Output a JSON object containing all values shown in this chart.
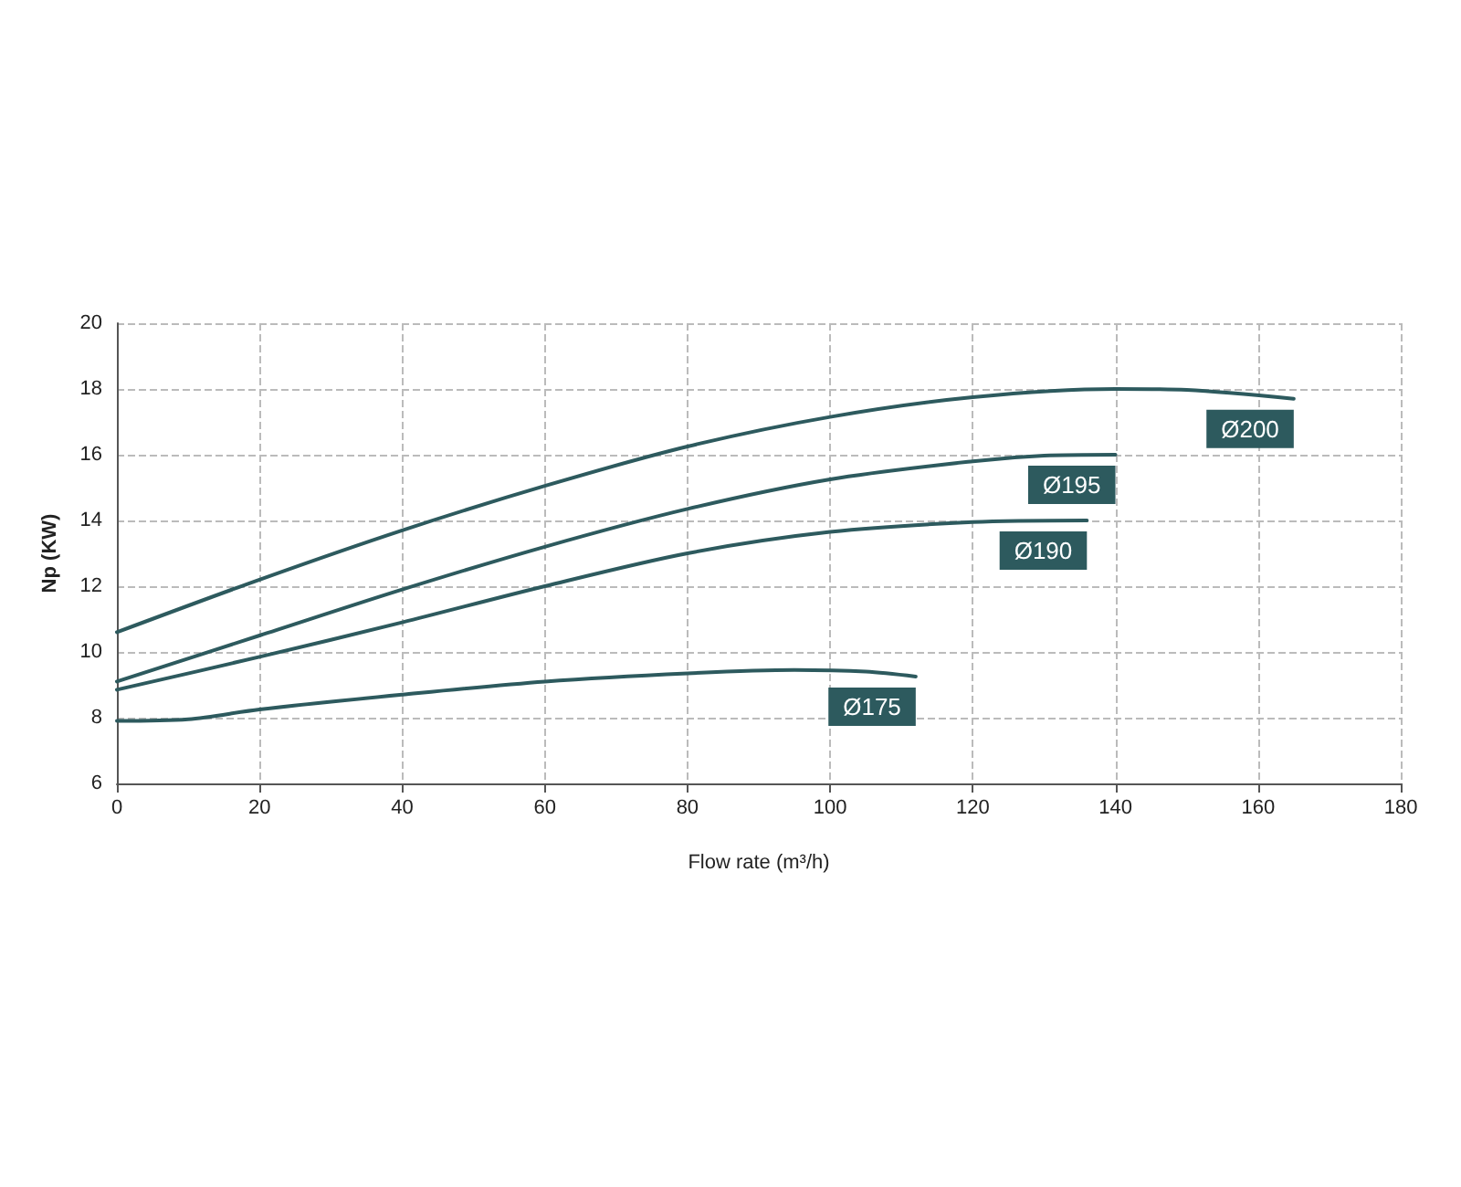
{
  "chart_data": {
    "type": "line",
    "xlabel": "Flow rate (m³/h)",
    "ylabel": "Np (KW)",
    "xlim": [
      0,
      180
    ],
    "xticks": [
      0,
      20,
      40,
      60,
      80,
      100,
      120,
      140,
      160,
      180
    ],
    "ylim": [
      6,
      20
    ],
    "yticks": [
      6,
      8,
      10,
      12,
      14,
      16,
      18,
      20
    ],
    "grid": true,
    "legend": false,
    "marker": "none",
    "line_style": "solid",
    "series": [
      {
        "name": "Ø200",
        "color": "#2d5a5e",
        "x": [
          0,
          20,
          40,
          60,
          80,
          100,
          120,
          140,
          150,
          165
        ],
        "values": [
          10.6,
          12.2,
          13.7,
          15.05,
          16.25,
          17.15,
          17.75,
          18.0,
          17.97,
          17.7
        ]
      },
      {
        "name": "Ø195",
        "color": "#2d5a5e",
        "x": [
          0,
          20,
          40,
          60,
          80,
          100,
          120,
          130,
          140
        ],
        "values": [
          9.1,
          10.5,
          11.9,
          13.2,
          14.35,
          15.25,
          15.8,
          15.97,
          16.0
        ]
      },
      {
        "name": "Ø190",
        "color": "#2d5a5e",
        "x": [
          0,
          20,
          40,
          60,
          80,
          100,
          120,
          136
        ],
        "values": [
          8.85,
          9.85,
          10.9,
          12.0,
          13.0,
          13.65,
          13.95,
          14.0
        ]
      },
      {
        "name": "Ø175",
        "color": "#2d5a5e",
        "x": [
          0,
          10,
          20,
          40,
          60,
          80,
          95,
          105,
          112
        ],
        "values": [
          7.9,
          7.95,
          8.25,
          8.7,
          9.1,
          9.35,
          9.45,
          9.4,
          9.25
        ]
      }
    ]
  }
}
